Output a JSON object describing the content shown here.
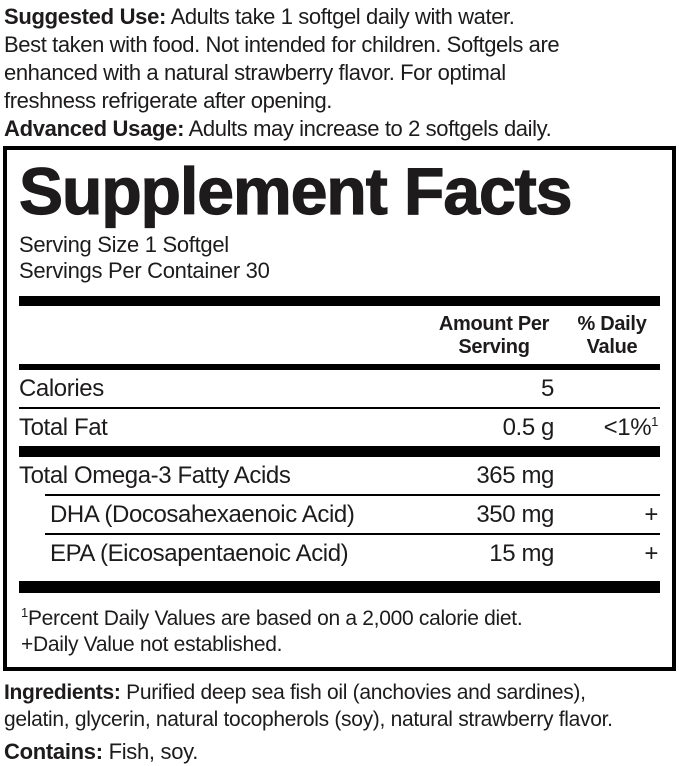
{
  "usage": {
    "suggested_label": "Suggested Use:",
    "suggested_lines": [
      "Adults take 1 softgel daily with water.",
      "Best taken with food. Not intended for children. Softgels are",
      "enhanced with a natural strawberry flavor. For optimal",
      "freshness refrigerate after opening."
    ],
    "advanced_label": "Advanced Usage:",
    "advanced_text": "Adults may increase to 2 softgels daily."
  },
  "panel": {
    "title": "Supplement Facts",
    "serving_size": "Serving Size 1 Softgel",
    "servings_per_container": "Servings Per Container 30",
    "columns": {
      "amount": "Amount Per Serving",
      "daily_value": "% Daily Value"
    },
    "rows": [
      {
        "name": "Calories",
        "amount": "5",
        "daily_value": ""
      },
      {
        "name": "Total Fat",
        "amount": "0.5 g",
        "daily_value": "<1%",
        "daily_value_sup": "1"
      },
      {
        "name": "Total Omega-3 Fatty Acids",
        "amount": "365 mg",
        "daily_value": ""
      },
      {
        "name": "DHA (Docosahexaenoic Acid)",
        "amount": "350 mg",
        "daily_value": "+"
      },
      {
        "name": "EPA (Eicosapentaenoic Acid)",
        "amount": "15 mg",
        "daily_value": "+"
      }
    ],
    "footnotes": {
      "sup1": "1",
      "note1": "Percent Daily Values are based on a 2,000 calorie diet.",
      "note2": "+Daily Value not established."
    }
  },
  "ingredients": {
    "label": "Ingredients:",
    "line1": "Purified deep sea fish oil (anchovies and sardines),",
    "line2": "gelatin, glycerin, natural tocopherols (soy), natural strawberry flavor."
  },
  "contains": {
    "label": "Contains:",
    "text": "Fish, soy."
  },
  "colors": {
    "background": "#ffffff",
    "text": "#1d1b1c",
    "rule": "#000000"
  }
}
